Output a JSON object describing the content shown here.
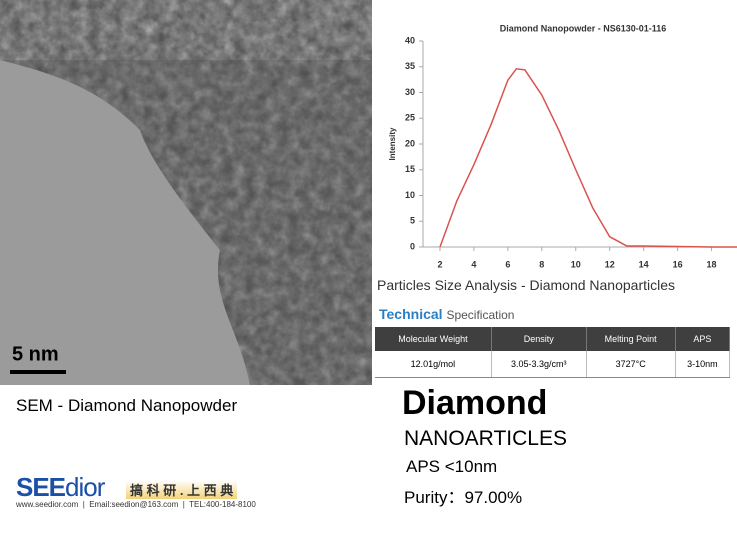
{
  "sem": {
    "scale_bar": "5 nm",
    "caption": "SEM - Diamond Nanopowder"
  },
  "chart_data": {
    "type": "line",
    "title": "Diamond Nanopowder - NS6130-01-116",
    "y_label": "Intensity",
    "x": [
      2,
      3,
      4,
      5,
      6,
      6.5,
      7,
      8,
      9,
      10,
      11,
      12,
      13,
      14,
      16,
      18,
      19.5
    ],
    "values": [
      0,
      9,
      16,
      23.7,
      32.4,
      34.6,
      34.4,
      29.5,
      22.7,
      15,
      7.6,
      2,
      0.2,
      0.2,
      0.1,
      0,
      0
    ],
    "color": "#d9534f",
    "xlim": [
      1,
      19.5
    ],
    "xticks": [
      2,
      4,
      6,
      8,
      10,
      12,
      14,
      16,
      18
    ],
    "ylim": [
      0,
      40
    ],
    "yticks": [
      0,
      5,
      10,
      15,
      20,
      25,
      30,
      35,
      40
    ]
  },
  "chart_caption": "Particles Size Analysis - Diamond Nanoparticles",
  "spec": {
    "title_bold": "Technical",
    "title_rest": "Specification",
    "table": {
      "header": [
        "Molecular Weight",
        "Density",
        "Melting Point",
        "APS"
      ],
      "rows": [
        [
          "12.01g/mol",
          "3.05-3.3g/cm³",
          "3727°C",
          "3-10nm"
        ]
      ]
    }
  },
  "product": {
    "name": "Diamond",
    "subtitle": "NANOARTICLES",
    "aps": "APS <10nm",
    "purity": "Purity：97.00%"
  },
  "logo": {
    "brand_a": "SEE",
    "brand_b": "dior",
    "slogan": "搞 科 研 . 上 西 典",
    "website": "www.seedior.com",
    "email": "Email:seedion@163.com",
    "tel": "TEL:400-184-8100"
  }
}
